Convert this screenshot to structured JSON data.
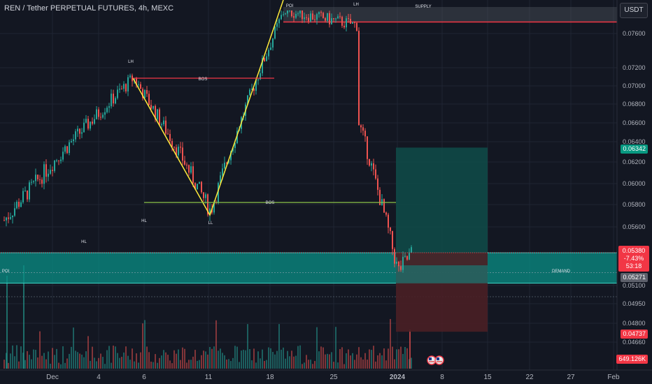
{
  "header": {
    "title": "REN / Tether PERPETUAL FUTURES, 4h, MEXC",
    "currency": "USDT"
  },
  "price_axis": {
    "ticks": [
      "0.07600",
      "0.07200",
      "0.07000",
      "0.06800",
      "0.06600",
      "0.06400",
      "0.06200",
      "0.06000",
      "0.05800",
      "0.05600",
      "0.05100",
      "0.04950",
      "0.04800",
      "0.04660"
    ],
    "labels": {
      "green": "0.06342",
      "current": "0.05380",
      "change": "-7.43%",
      "countdown": "53:18",
      "grey": "0.05271",
      "red": "0.04737",
      "volume": "649.126K"
    }
  },
  "time_axis": {
    "ticks": [
      "Dec",
      "4",
      "6",
      "11",
      "18",
      "25",
      "2024",
      "8",
      "15",
      "22",
      "27",
      "Feb"
    ]
  },
  "annotations": {
    "supply": "SUPPLY",
    "demand": "DEMAND",
    "poi_top": "POI",
    "poi_left": "POI",
    "lh_top": "LH",
    "lh_left": "LH",
    "bos_upper": "BOS",
    "bos_lower": "BOS",
    "hl_1": "HL",
    "hl_2": "HL",
    "ll": "LL"
  },
  "chart_data": {
    "type": "candlestick",
    "symbol": "REN / Tether PERPETUAL FUTURES",
    "timeframe": "4h",
    "exchange": "MEXC",
    "ylim": [
      0.0466,
      0.0788
    ],
    "xlabel": "",
    "ylabel": "",
    "grid": true,
    "volume_panel": true,
    "key_points": [
      {
        "x": "late Nov",
        "y": 0.0566
      },
      {
        "x": "Dec 10",
        "y": 0.0709
      },
      {
        "x": "Dec 18",
        "y": 0.0574
      },
      {
        "x": "Dec 26",
        "y": 0.0788
      },
      {
        "x": "Jan 2",
        "y": 0.077
      },
      {
        "x": "Jan 3",
        "y": 0.066
      },
      {
        "x": "Jan 8",
        "y": 0.0522
      },
      {
        "x": "Jan 9",
        "y": 0.0538
      }
    ],
    "last_price": 0.0538,
    "change_percent": -7.43,
    "volume_last": "649.126K",
    "levels": {
      "green": 0.06342,
      "grey": 0.05271,
      "red": 0.04737
    },
    "zones": {
      "supply": [
        0.0774,
        0.0788
      ],
      "demand_poi": [
        0.0512,
        0.0538
      ]
    },
    "colors": {
      "up": "#26a69a",
      "down": "#ef5350",
      "background": "#131722",
      "supply_line": "#f23645",
      "zigzag": "#ffeb3b",
      "bos_upper": "#f23645",
      "bos_lower": "#8bc34a",
      "demand_zone": "#0a8f86",
      "position_profit": "#0f4c49",
      "position_loss": "#4a1f25"
    }
  }
}
